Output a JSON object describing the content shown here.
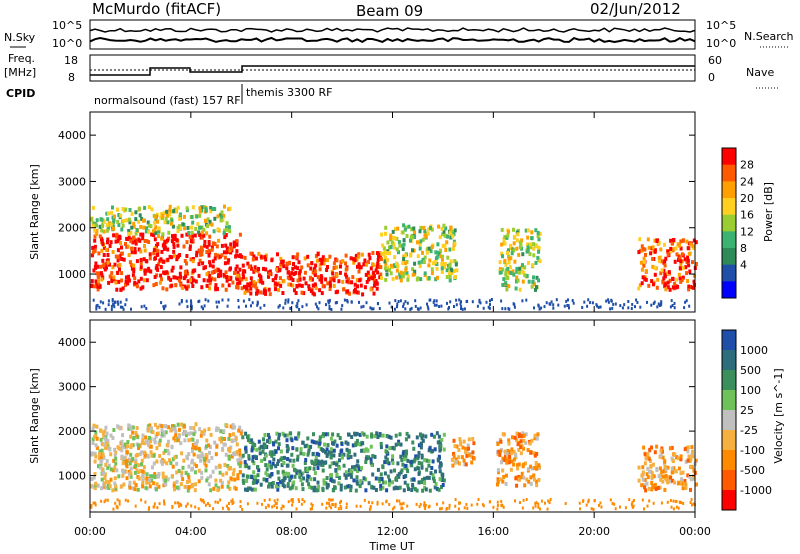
{
  "header": {
    "station": "McMurdo (fitACF)",
    "beam": "Beam 09",
    "date": "02/Jun/2012"
  },
  "left_labels": {
    "nsky": "N.Sky",
    "freq": "Freq.",
    "freq_unit": "[MHz]",
    "cpid": "CPID"
  },
  "right_labels": {
    "nsearch": "N.Search",
    "nave": "Nave"
  },
  "cpid_labels": {
    "first": "normalsound (fast) 157 RF",
    "second": "themis 3300 RF"
  },
  "noise_axis": {
    "left_ticks": [
      "10^5",
      "10^0"
    ],
    "right_ticks": [
      "10^5",
      "10^0"
    ]
  },
  "freq_axis": {
    "left_ticks": [
      "18",
      "8"
    ],
    "right_ticks": [
      "60",
      "0"
    ]
  },
  "chart_data": [
    {
      "type": "heatmap",
      "panel": "power",
      "ylabel": "Slant Range [km]",
      "yticks": [
        "4000",
        "3000",
        "2000",
        "1000"
      ],
      "ylim": [
        180,
        4500
      ],
      "xlim": [
        "00:00",
        "24:00"
      ],
      "colorbar_label": "Power [dB]",
      "colorbar_ticks": [
        "28",
        "24",
        "20",
        "16",
        "12",
        "8",
        "4"
      ],
      "colorbar_colors": [
        "#ff0000",
        "#ff5a00",
        "#ffa000",
        "#ffd020",
        "#9acd32",
        "#3cb371",
        "#2e8b57",
        "#1f4fa8",
        "#0000ff"
      ],
      "echo_regions": [
        {
          "t_start": 0.0,
          "t_end": 6.0,
          "r_min": 700,
          "r_max": 1900,
          "level": "28"
        },
        {
          "t_start": 0.0,
          "t_end": 5.5,
          "r_min": 1900,
          "r_max": 2500,
          "level": "12"
        },
        {
          "t_start": 6.0,
          "t_end": 11.5,
          "r_min": 600,
          "r_max": 1500,
          "level": "28"
        },
        {
          "t_start": 11.5,
          "t_end": 14.5,
          "r_min": 900,
          "r_max": 2100,
          "level": "12"
        },
        {
          "t_start": 16.2,
          "t_end": 17.8,
          "r_min": 700,
          "r_max": 2000,
          "level": "12"
        },
        {
          "t_start": 21.7,
          "t_end": 24.0,
          "r_min": 700,
          "r_max": 1800,
          "level": "24"
        }
      ]
    },
    {
      "type": "heatmap",
      "panel": "velocity",
      "ylabel": "Slant Range [km]",
      "yticks": [
        "4000",
        "3000",
        "2000",
        "1000"
      ],
      "ylim": [
        180,
        4500
      ],
      "xlim": [
        "00:00",
        "24:00"
      ],
      "xlabel": "Time UT",
      "xticks": [
        "00:00",
        "04:00",
        "08:00",
        "12:00",
        "16:00",
        "20:00",
        "00:00"
      ],
      "colorbar_label": "Velocity [m s^-1]",
      "colorbar_ticks": [
        "1000",
        "500",
        "100",
        "25",
        "-25",
        "-100",
        "-500",
        "-1000"
      ],
      "colorbar_colors": [
        "#1f4fa8",
        "#2e6e7c",
        "#3a8f5c",
        "#6fc25a",
        "#c0c0c0",
        "#f5b040",
        "#ff8a00",
        "#ff5a00",
        "#ff0000"
      ],
      "echo_regions": [
        {
          "t_start": 0.0,
          "t_end": 6.0,
          "r_min": 700,
          "r_max": 2200,
          "level": "-100"
        },
        {
          "t_start": 6.0,
          "t_end": 14.0,
          "r_min": 700,
          "r_max": 2000,
          "level": "100"
        },
        {
          "t_start": 14.3,
          "t_end": 15.2,
          "r_min": 1200,
          "r_max": 1900,
          "level": "-500"
        },
        {
          "t_start": 16.1,
          "t_end": 17.8,
          "r_min": 800,
          "r_max": 2000,
          "level": "-500"
        },
        {
          "t_start": 21.7,
          "t_end": 24.0,
          "r_min": 700,
          "r_max": 1700,
          "level": "-500"
        }
      ]
    }
  ]
}
